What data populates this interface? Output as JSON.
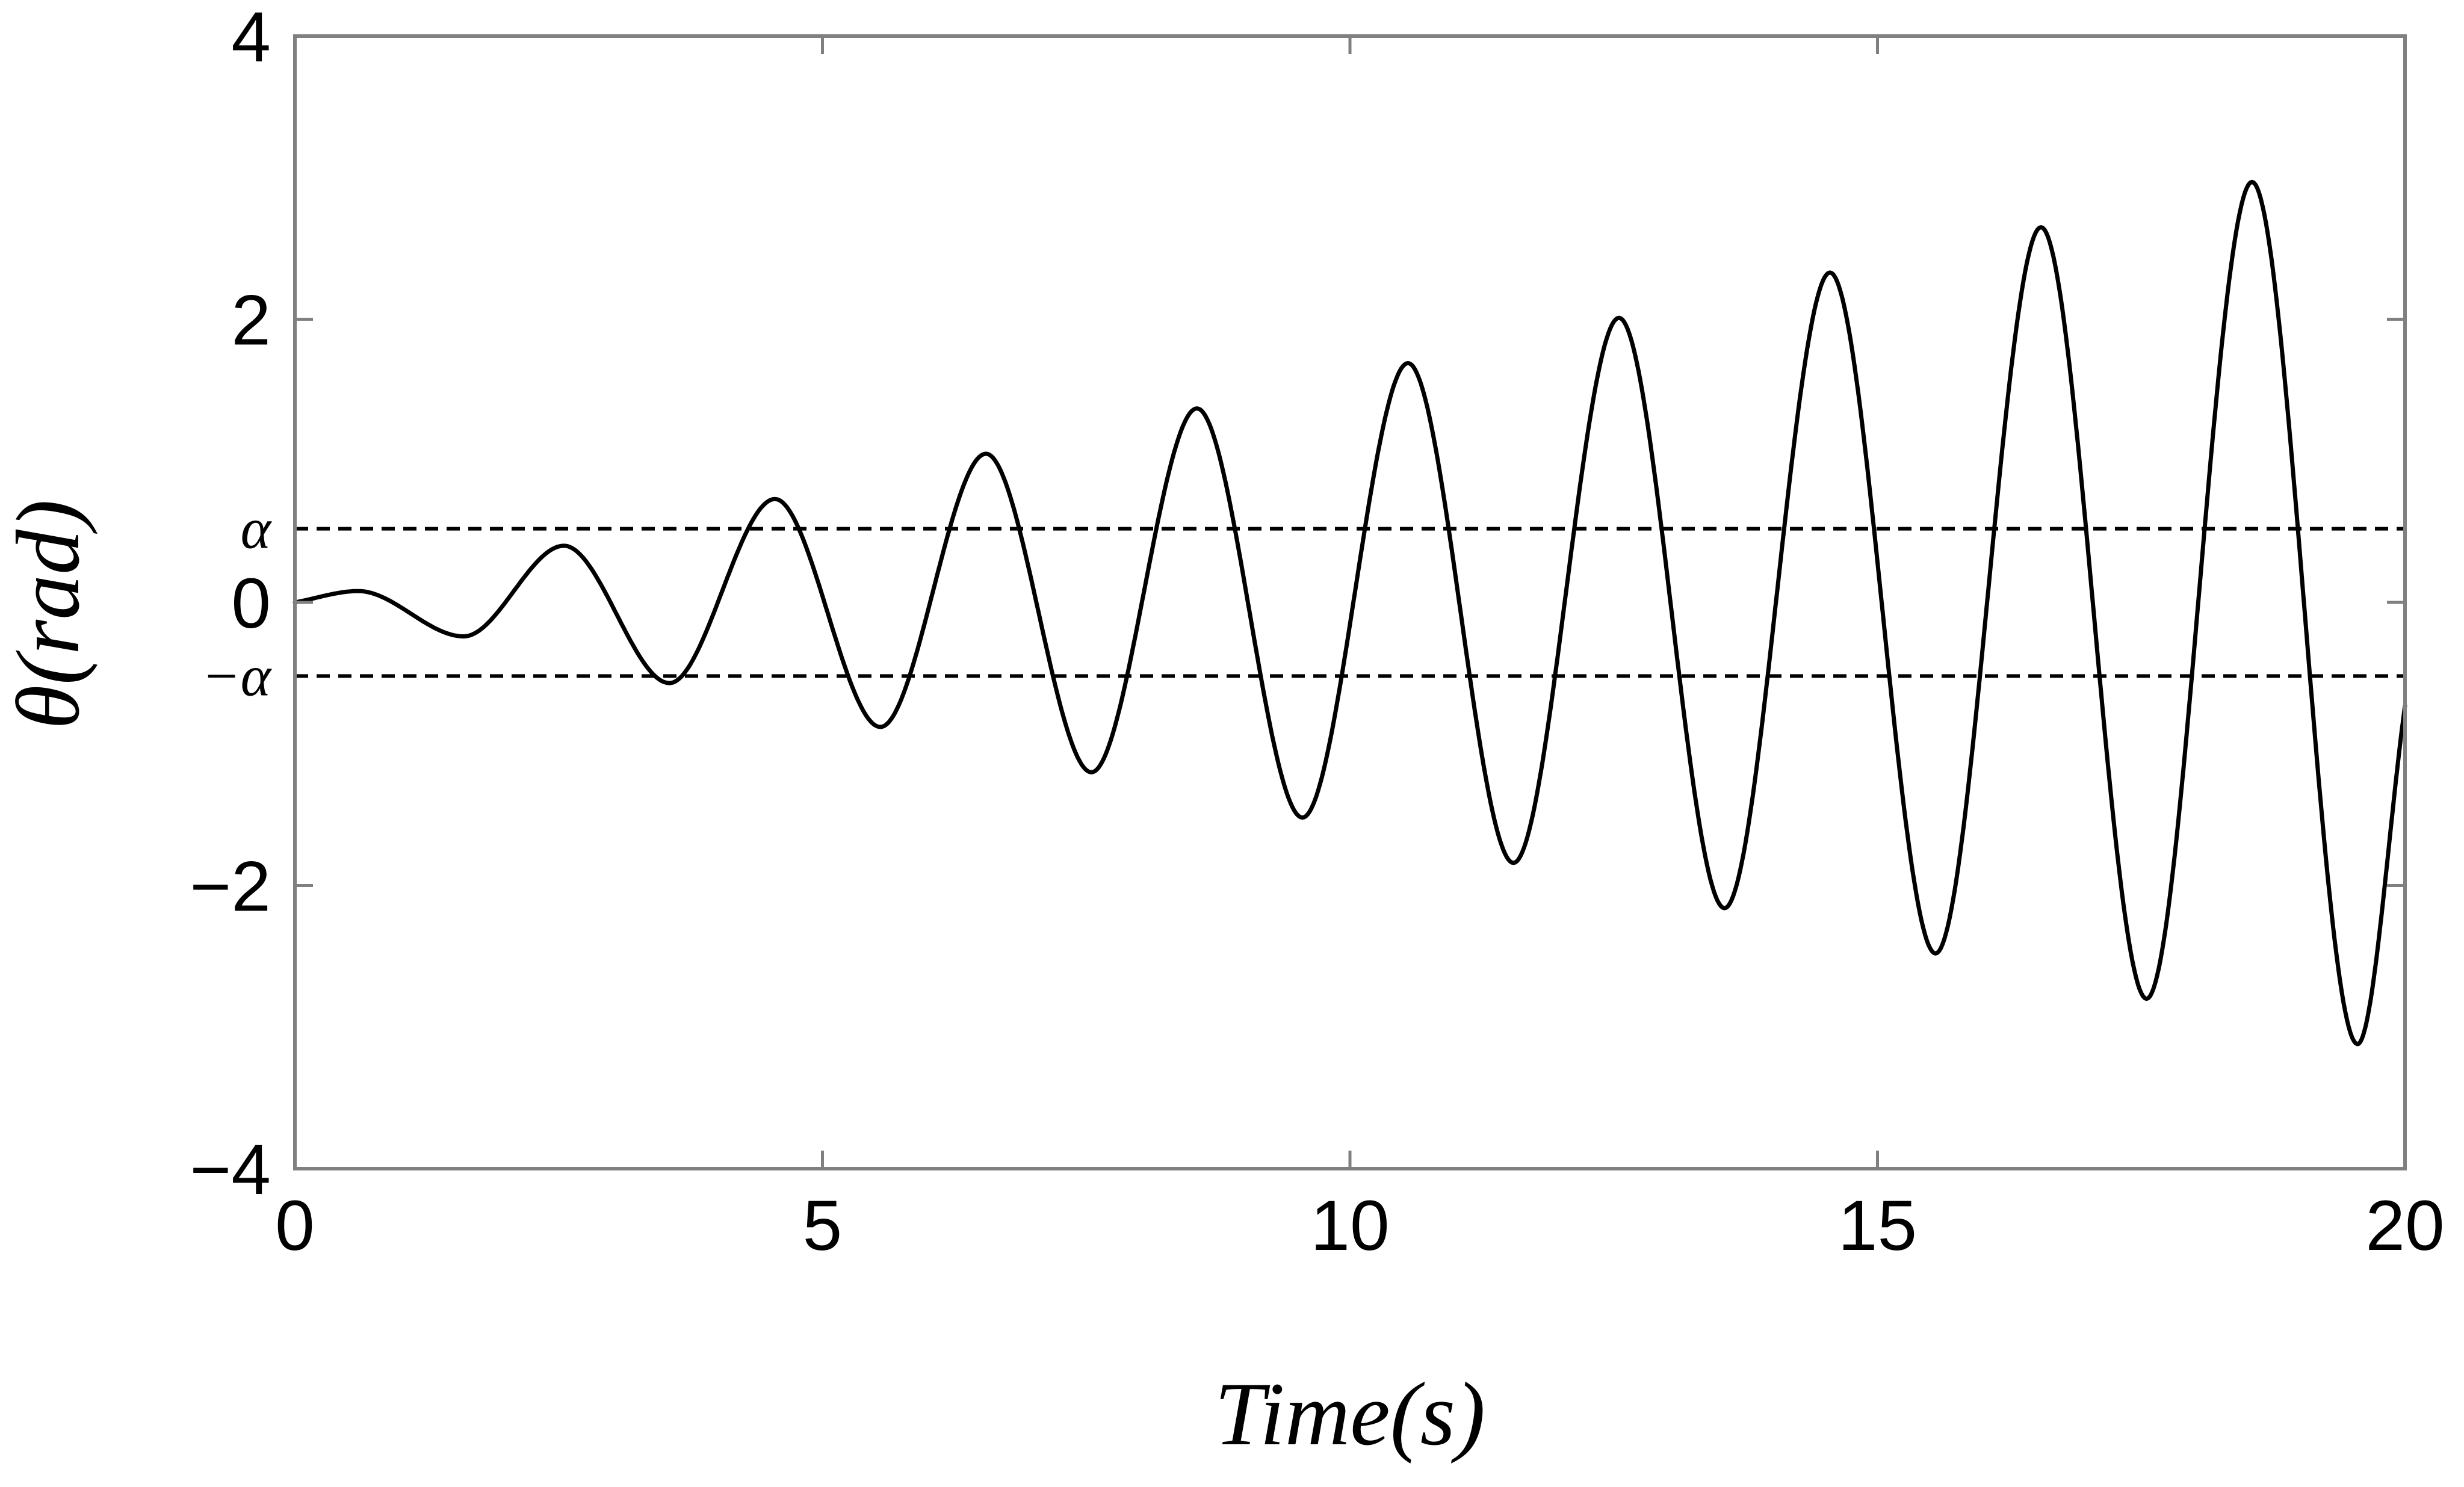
{
  "chart_data": {
    "type": "line",
    "title": "",
    "xlabel": "Time(s)",
    "ylabel": "θ(rad)",
    "xlim": [
      0,
      20
    ],
    "ylim": [
      -4,
      4
    ],
    "grid": false,
    "legend": "none",
    "x_ticks": [
      {
        "value": 0,
        "label": "0"
      },
      {
        "value": 5,
        "label": "5"
      },
      {
        "value": 10,
        "label": "10"
      },
      {
        "value": 15,
        "label": "15"
      },
      {
        "value": 20,
        "label": "20"
      }
    ],
    "y_ticks": [
      {
        "value": 4,
        "label": "4"
      },
      {
        "value": 2,
        "label": "2"
      },
      {
        "value": 0,
        "label": "0"
      },
      {
        "value": -2,
        "label": "−2"
      },
      {
        "value": -4,
        "label": "−4"
      }
    ],
    "reference_lines": [
      {
        "label": "α",
        "value": 0.52,
        "style": "dashed"
      },
      {
        "label": "−α",
        "value": -0.52,
        "style": "dashed"
      }
    ],
    "series": [
      {
        "color": "#000000",
        "x": [
          0,
          0.6,
          1.6,
          2.55,
          3.55,
          4.55,
          5.55,
          6.55,
          7.55,
          8.55,
          9.55,
          10.55,
          11.55,
          12.55,
          13.55,
          14.55,
          15.55,
          16.55,
          17.55,
          18.55,
          19.55,
          20
        ],
        "y": [
          0,
          0.08,
          -0.24,
          0.4,
          -0.57,
          0.73,
          -0.88,
          1.05,
          -1.2,
          1.37,
          -1.52,
          1.69,
          -1.84,
          2.01,
          -2.16,
          2.33,
          -2.48,
          2.65,
          -2.8,
          2.97,
          -3.12,
          -0.73
        ]
      }
    ],
    "colors": {
      "line": "#000000",
      "axes": "#808080",
      "background": "#ffffff"
    }
  }
}
